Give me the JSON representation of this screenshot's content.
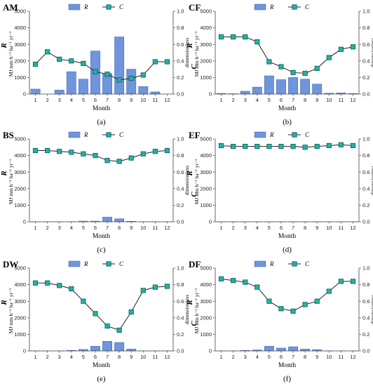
{
  "figure": {
    "chart_data": [
      {
        "type": "bar+line",
        "title": "AM",
        "caption": "(a)",
        "xlabel": "Month",
        "ylabel_left_symbol": "R",
        "ylabel_left_unit": "MJ mm h⁻¹ ha⁻¹ yr⁻¹",
        "ylabel_right_symbol": "C",
        "ylabel_right_unit": "dimensionless",
        "categories": [
          "1",
          "2",
          "3",
          "4",
          "5",
          "6",
          "7",
          "8",
          "9",
          "10",
          "11",
          "12"
        ],
        "ylim_left": [
          0,
          5000
        ],
        "ylim_right": [
          0,
          1.0
        ],
        "yticks_left": [
          "0",
          "1000",
          "2000",
          "3000",
          "4000",
          "5000"
        ],
        "yticks_right": [
          "0.0",
          "0.2",
          "0.4",
          "0.6",
          "0.8",
          "1.0"
        ],
        "legend_position": "top-center",
        "series": [
          {
            "name": "R",
            "kind": "bar",
            "axis": "left",
            "values": [
              300,
              0,
              240,
              1350,
              900,
              2600,
              1250,
              3450,
              1500,
              450,
              130,
              0
            ]
          },
          {
            "name": "C",
            "kind": "line",
            "axis": "right",
            "values": [
              0.36,
              0.51,
              0.42,
              0.4,
              0.37,
              0.27,
              0.24,
              0.17,
              0.19,
              0.23,
              0.39,
              0.39
            ]
          }
        ]
      },
      {
        "type": "bar+line",
        "title": "CF",
        "caption": "(b)",
        "xlabel": "Month",
        "ylabel_left_symbol": "R",
        "ylabel_left_unit": "MJ mm h⁻¹ ha⁻¹ yr⁻¹",
        "ylabel_right_symbol": "C",
        "ylabel_right_unit": "dimensionless",
        "categories": [
          "1",
          "2",
          "3",
          "4",
          "5",
          "6",
          "7",
          "8",
          "9",
          "10",
          "11",
          "12"
        ],
        "ylim_left": [
          0,
          5000
        ],
        "ylim_right": [
          0,
          1.0
        ],
        "yticks_left": [
          "0",
          "1000",
          "2000",
          "3000",
          "4000",
          "5000"
        ],
        "yticks_right": [
          "0.0",
          "0.2",
          "0.4",
          "0.6",
          "0.8",
          "1.0"
        ],
        "legend_position": "top-center",
        "series": [
          {
            "name": "R",
            "kind": "bar",
            "axis": "left",
            "values": [
              40,
              20,
              170,
              420,
              1100,
              870,
              1000,
              900,
              600,
              50,
              70,
              30
            ]
          },
          {
            "name": "C",
            "kind": "line",
            "axis": "right",
            "values": [
              0.69,
              0.69,
              0.69,
              0.63,
              0.39,
              0.33,
              0.26,
              0.25,
              0.31,
              0.44,
              0.54,
              0.57
            ]
          }
        ]
      },
      {
        "type": "bar+line",
        "title": "BS",
        "caption": "(c)",
        "xlabel": "Month",
        "ylabel_left_symbol": "R",
        "ylabel_left_unit": "MJ mm h⁻¹ ha⁻¹ yr⁻¹",
        "ylabel_right_symbol": "C",
        "ylabel_right_unit": "dimensionless",
        "categories": [
          "1",
          "2",
          "3",
          "4",
          "5",
          "6",
          "7",
          "8",
          "9",
          "10",
          "11",
          "12"
        ],
        "ylim_left": [
          0,
          5000
        ],
        "ylim_right": [
          0,
          1.0
        ],
        "yticks_left": [
          "0",
          "1000",
          "2000",
          "3000",
          "4000",
          "5000"
        ],
        "yticks_right": [
          "0.0",
          "0.2",
          "0.4",
          "0.6",
          "0.8",
          "1.0"
        ],
        "legend_position": "top-center",
        "series": [
          {
            "name": "R",
            "kind": "bar",
            "axis": "left",
            "values": [
              5,
              5,
              5,
              10,
              40,
              40,
              280,
              180,
              30,
              5,
              5,
              5
            ]
          },
          {
            "name": "C",
            "kind": "line",
            "axis": "right",
            "values": [
              0.86,
              0.86,
              0.85,
              0.84,
              0.82,
              0.8,
              0.74,
              0.73,
              0.77,
              0.82,
              0.85,
              0.86
            ]
          }
        ]
      },
      {
        "type": "bar+line",
        "title": "EF",
        "caption": "(d)",
        "xlabel": "Month",
        "ylabel_left_symbol": "R",
        "ylabel_left_unit": "MJ mm h⁻¹ ha⁻¹ yr⁻¹",
        "ylabel_right_symbol": "C",
        "ylabel_right_unit": "dimensionless",
        "categories": [
          "1",
          "2",
          "3",
          "4",
          "5",
          "6",
          "7",
          "8",
          "9",
          "10",
          "11",
          "12"
        ],
        "ylim_left": [
          0,
          5000
        ],
        "ylim_right": [
          0,
          1.0
        ],
        "yticks_left": [
          "0",
          "1000",
          "2000",
          "3000",
          "4000",
          "5000"
        ],
        "yticks_right": [
          "0.0",
          "0.2",
          "0.4",
          "0.6",
          "0.8",
          "1.0"
        ],
        "legend_position": "top-center",
        "series": [
          {
            "name": "R",
            "kind": "bar",
            "axis": "left",
            "values": [
              5,
              5,
              5,
              5,
              10,
              10,
              10,
              10,
              10,
              5,
              5,
              5
            ]
          },
          {
            "name": "C",
            "kind": "line",
            "axis": "right",
            "values": [
              0.92,
              0.91,
              0.91,
              0.91,
              0.91,
              0.91,
              0.91,
              0.9,
              0.91,
              0.92,
              0.93,
              0.92
            ]
          }
        ]
      },
      {
        "type": "bar+line",
        "title": "DW",
        "caption": "(e)",
        "xlabel": "Month",
        "ylabel_left_symbol": "R",
        "ylabel_left_unit": "MJ mm h⁻¹ ha⁻¹ yr⁻¹",
        "ylabel_right_symbol": "C",
        "ylabel_right_unit": "dimensionless",
        "categories": [
          "1",
          "2",
          "3",
          "4",
          "5",
          "6",
          "7",
          "8",
          "9",
          "10",
          "11",
          "12"
        ],
        "ylim_left": [
          0,
          5000
        ],
        "ylim_right": [
          0,
          1.0
        ],
        "yticks_left": [
          "0",
          "1000",
          "2000",
          "3000",
          "4000",
          "5000"
        ],
        "yticks_right": [
          "0.0",
          "0.2",
          "0.4",
          "0.6",
          "0.8",
          "1.0"
        ],
        "legend_position": "top-center",
        "series": [
          {
            "name": "R",
            "kind": "bar",
            "axis": "left",
            "values": [
              5,
              5,
              10,
              30,
              90,
              280,
              580,
              510,
              110,
              10,
              5,
              5
            ]
          },
          {
            "name": "C",
            "kind": "line",
            "axis": "right",
            "values": [
              0.82,
              0.82,
              0.79,
              0.75,
              0.6,
              0.45,
              0.3,
              0.25,
              0.47,
              0.73,
              0.77,
              0.78
            ]
          }
        ]
      },
      {
        "type": "bar+line",
        "title": "DF",
        "caption": "(f)",
        "xlabel": "Month",
        "ylabel_left_symbol": "R",
        "ylabel_left_unit": "MJ mm h⁻¹ ha⁻¹ yr⁻¹",
        "ylabel_right_symbol": "C",
        "ylabel_right_unit": "dimensionless",
        "categories": [
          "1",
          "2",
          "3",
          "4",
          "5",
          "6",
          "7",
          "8",
          "9",
          "10",
          "11",
          "12"
        ],
        "ylim_left": [
          0,
          5000
        ],
        "ylim_right": [
          0,
          1.0
        ],
        "yticks_left": [
          "0",
          "1000",
          "2000",
          "3000",
          "4000",
          "5000"
        ],
        "yticks_right": [
          "0.0",
          "0.2",
          "0.4",
          "0.6",
          "0.8",
          "1.0"
        ],
        "legend_position": "top-center",
        "series": [
          {
            "name": "R",
            "kind": "bar",
            "axis": "left",
            "values": [
              5,
              10,
              30,
              60,
              280,
              170,
              250,
              110,
              80,
              10,
              10,
              5
            ]
          },
          {
            "name": "C",
            "kind": "line",
            "axis": "right",
            "values": [
              0.87,
              0.85,
              0.83,
              0.77,
              0.6,
              0.51,
              0.48,
              0.56,
              0.6,
              0.72,
              0.84,
              0.84
            ]
          }
        ]
      }
    ],
    "colors": {
      "bar_fill": "#6f95dc",
      "bar_stroke": "#3c5fa8",
      "line": "#222222",
      "marker_fill": "#1fb3a1",
      "marker_stroke": "#0d5e55",
      "axis": "#444444"
    }
  }
}
